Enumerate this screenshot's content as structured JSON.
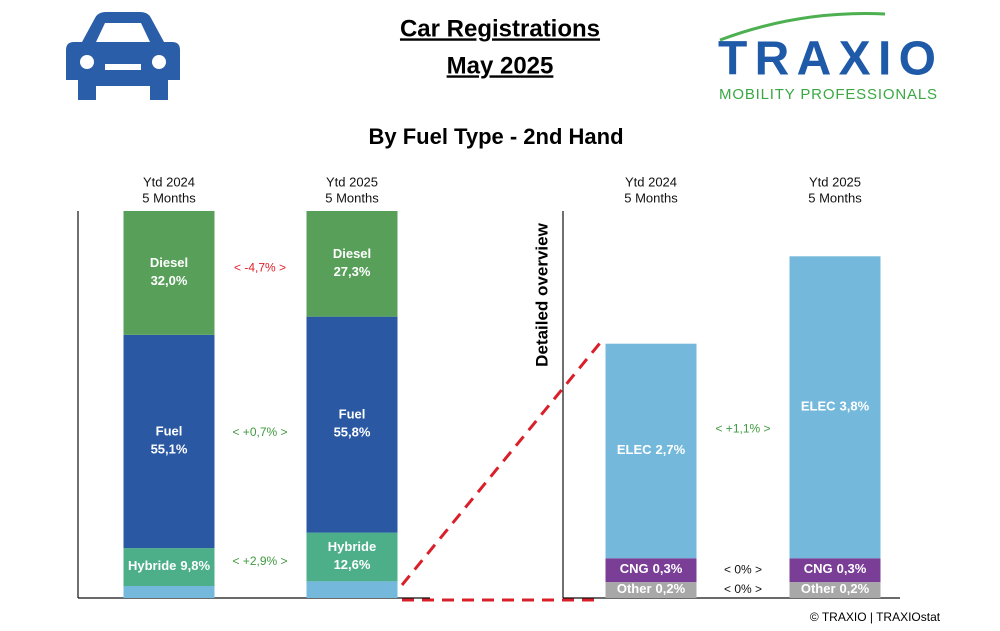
{
  "header": {
    "title": "Car Registrations",
    "subtitle_date": "May 2025",
    "logo": "TRAXIO",
    "logo_tagline": "MOBILITY PROFESSIONALS"
  },
  "section_title": "By Fuel Type - 2nd Hand",
  "footer": "© TRAXIO | TRAXIOstat",
  "chart_data": [
    {
      "type": "bar",
      "stacked": true,
      "categories": [
        [
          "Ytd 2024",
          "5 Months"
        ],
        [
          "Ytd 2025",
          "5 Months"
        ]
      ],
      "ylim": [
        0,
        100
      ],
      "series": [
        {
          "color": "#74b9dc",
          "values": [
            3.1,
            4.3
          ]
        },
        {
          "name": "Hybride",
          "color": "#4daf8a",
          "values": [
            9.8,
            12.6
          ],
          "value_labels": [
            "9,8%",
            "12,6%"
          ],
          "change": "< +2,9% >",
          "change_color": "#3f9a3f"
        },
        {
          "name": "Fuel",
          "color": "#2a58a3",
          "values": [
            55.1,
            55.8
          ],
          "value_labels": [
            "55,1%",
            "55,8%"
          ],
          "change": "< +0,7% >",
          "change_color": "#3f9a3f"
        },
        {
          "name": "Diesel",
          "color": "#58a05a",
          "values": [
            32.0,
            27.3
          ],
          "value_labels": [
            "32,0%",
            "27,3%"
          ],
          "change": "< -4,7% >",
          "change_color": "#e0202a"
        }
      ]
    },
    {
      "type": "bar",
      "stacked": true,
      "ylabel": "Detailed overview",
      "categories": [
        [
          "Ytd 2024",
          "5 Months"
        ],
        [
          "Ytd 2025",
          "5 Months"
        ]
      ],
      "ylim": [
        0,
        4.87
      ],
      "series": [
        {
          "name": "Other",
          "color": "#a8a8a8",
          "values": [
            0.2,
            0.2
          ],
          "value_labels": [
            "0,2%",
            "0,2%"
          ],
          "change": "< 0% >",
          "change_color": "#111111"
        },
        {
          "name": "CNG",
          "color": "#7a3e97",
          "values": [
            0.3,
            0.3
          ],
          "value_labels": [
            "0,3%",
            "0,3%"
          ],
          "change": "< 0% >",
          "change_color": "#111111"
        },
        {
          "name": "ELEC",
          "color": "#74b9dc",
          "values": [
            2.7,
            3.8
          ],
          "value_labels": [
            "2,7%",
            "3,8%"
          ],
          "change": "< +1,1% >",
          "change_color": "#3f9a3f"
        }
      ]
    }
  ]
}
